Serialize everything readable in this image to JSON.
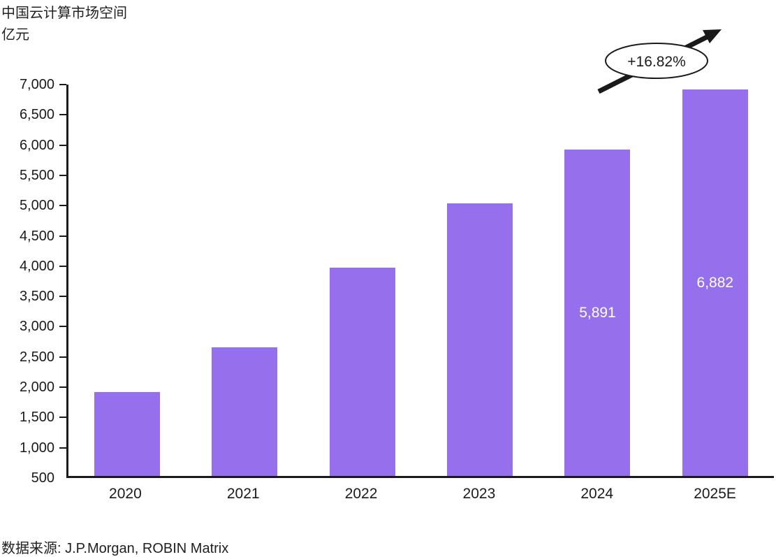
{
  "title": "中国云计算市场空间",
  "unit_label": "亿元",
  "source": "数据来源: J.P.Morgan, ROBIN Matrix",
  "annotation": {
    "growth_label": "+16.82%"
  },
  "colors": {
    "bar": "#9670EC",
    "axis": "#1a1a1a",
    "text": "#212121",
    "bar_label": "#ffffff"
  },
  "chart_data": {
    "type": "bar",
    "title": "中国云计算市场空间",
    "ylabel": "亿元",
    "categories": [
      "2020",
      "2021",
      "2022",
      "2023",
      "2024",
      "2025E"
    ],
    "values": [
      1880,
      2630,
      3940,
      5000,
      5891,
      6882
    ],
    "bar_labels": [
      "",
      "",
      "",
      "",
      "5,891",
      "6,882"
    ],
    "ylim": [
      500,
      7000
    ],
    "ytick_step": 500,
    "grid": false,
    "legend": false,
    "annotation_growth": "+16.82%"
  }
}
